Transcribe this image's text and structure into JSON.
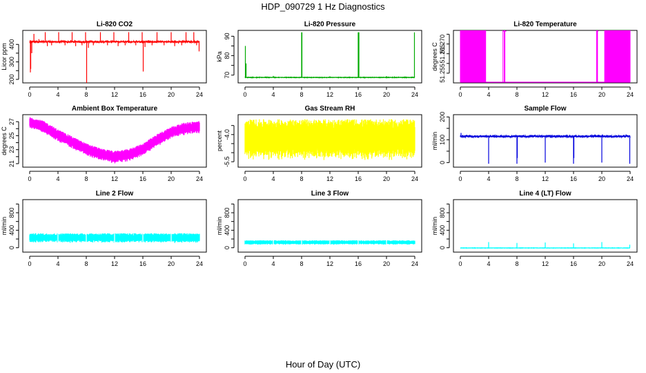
{
  "figure": {
    "title": "HDP_090729  1 Hz Diagnostics",
    "xlabel": "Hour of Day (UTC)"
  },
  "chart_data": [
    {
      "type": "line",
      "title": "Li-820 CO2",
      "ylabel": "Licor ppm",
      "color": "#ff0000",
      "style": "baseline-spiky",
      "xlim": [
        0,
        24
      ],
      "xticks": [
        "0",
        "4",
        "8",
        "12",
        "16",
        "20",
        "24"
      ],
      "ylim": [
        180,
        480
      ],
      "yticks": [
        200,
        250,
        300,
        350,
        400
      ],
      "yticklabels": [
        "200",
        "",
        "300",
        "",
        "400"
      ],
      "base": 415,
      "noise": 4,
      "spikes": [
        {
          "x": 0.1,
          "y": 240
        },
        {
          "x": 0.15,
          "y": 260
        },
        {
          "x": 0.3,
          "y": 350
        },
        {
          "x": 0.6,
          "y": 460
        },
        {
          "x": 1.3,
          "y": 430
        },
        {
          "x": 2.2,
          "y": 470
        },
        {
          "x": 2.5,
          "y": 390
        },
        {
          "x": 3.1,
          "y": 395
        },
        {
          "x": 4.1,
          "y": 470
        },
        {
          "x": 5.0,
          "y": 395
        },
        {
          "x": 6.0,
          "y": 470
        },
        {
          "x": 6.5,
          "y": 390
        },
        {
          "x": 7.4,
          "y": 395
        },
        {
          "x": 7.9,
          "y": 470
        },
        {
          "x": 8.05,
          "y": 180
        },
        {
          "x": 8.3,
          "y": 380
        },
        {
          "x": 9.0,
          "y": 395
        },
        {
          "x": 10.0,
          "y": 470
        },
        {
          "x": 11.0,
          "y": 395
        },
        {
          "x": 11.9,
          "y": 470
        },
        {
          "x": 12.5,
          "y": 390
        },
        {
          "x": 13.5,
          "y": 395
        },
        {
          "x": 14.0,
          "y": 470
        },
        {
          "x": 15.0,
          "y": 395
        },
        {
          "x": 15.9,
          "y": 470
        },
        {
          "x": 16.05,
          "y": 245
        },
        {
          "x": 16.3,
          "y": 385
        },
        {
          "x": 17.3,
          "y": 395
        },
        {
          "x": 18.0,
          "y": 470
        },
        {
          "x": 19.0,
          "y": 395
        },
        {
          "x": 20.0,
          "y": 470
        },
        {
          "x": 20.5,
          "y": 390
        },
        {
          "x": 21.5,
          "y": 395
        },
        {
          "x": 22.1,
          "y": 470
        },
        {
          "x": 23.2,
          "y": 470
        },
        {
          "x": 23.6,
          "y": 395
        },
        {
          "x": 23.95,
          "y": 360
        }
      ]
    },
    {
      "type": "line",
      "title": "Li-820 Pressure",
      "ylabel": "kPa",
      "color": "#00aa00",
      "style": "baseline-spiky",
      "xlim": [
        0,
        24
      ],
      "xticks": [
        "0",
        "4",
        "8",
        "12",
        "16",
        "20",
        "24"
      ],
      "ylim": [
        66,
        93
      ],
      "yticks": [
        70,
        75,
        80,
        85,
        90
      ],
      "yticklabels": [
        "70",
        "",
        "80",
        "",
        "90"
      ],
      "base": 68.8,
      "noise": 0.1,
      "spikes": [
        {
          "x": 0.05,
          "y": 85
        },
        {
          "x": 0.15,
          "y": 76
        },
        {
          "x": 4.0,
          "y": 69.6
        },
        {
          "x": 8.0,
          "y": 92
        },
        {
          "x": 8.05,
          "y": 92
        },
        {
          "x": 12.0,
          "y": 69.4
        },
        {
          "x": 16.0,
          "y": 92
        },
        {
          "x": 16.05,
          "y": 92
        },
        {
          "x": 16.1,
          "y": 92
        },
        {
          "x": 20.0,
          "y": 69.5
        },
        {
          "x": 23.95,
          "y": 92
        }
      ]
    },
    {
      "type": "line",
      "title": "Li-820 Temperature",
      "ylabel": "degrees C",
      "color": "#ff00ff",
      "style": "toggle",
      "xlim": [
        0,
        24
      ],
      "xticks": [
        "0",
        "4",
        "8",
        "12",
        "16",
        "20",
        "24"
      ],
      "ylim": [
        51.25,
        51.277
      ],
      "yticks": [
        51.255,
        51.26,
        51.265,
        51.27,
        51.275
      ],
      "yticklabels": [
        "51.255",
        "",
        "51.265",
        "51.270",
        ""
      ],
      "low": 51.25,
      "high": 51.277,
      "toggle_density": [
        {
          "from": 0.0,
          "to": 3.6,
          "density": 0.9
        },
        {
          "from": 6.0,
          "to": 6.5,
          "density": 0.25
        },
        {
          "from": 19.2,
          "to": 19.5,
          "density": 0.4
        },
        {
          "from": 20.4,
          "to": 24.0,
          "density": 0.85
        }
      ]
    },
    {
      "type": "line",
      "title": "Ambient Box Temperature",
      "ylabel": "degrees C",
      "color": "#ff00ff",
      "style": "band",
      "xlim": [
        0,
        24
      ],
      "xticks": [
        "0",
        "4",
        "8",
        "12",
        "16",
        "20",
        "24"
      ],
      "ylim": [
        20.5,
        28.0
      ],
      "yticks": [
        21,
        22,
        23,
        24,
        25,
        26,
        27
      ],
      "yticklabels": [
        "21",
        "",
        "23",
        "",
        "25",
        "",
        "27"
      ],
      "curve": [
        {
          "x": 0,
          "y": 26.8
        },
        {
          "x": 2,
          "y": 26.2
        },
        {
          "x": 4,
          "y": 25.0
        },
        {
          "x": 6,
          "y": 24.0
        },
        {
          "x": 8,
          "y": 23.0
        },
        {
          "x": 10,
          "y": 22.3
        },
        {
          "x": 12,
          "y": 21.9
        },
        {
          "x": 14,
          "y": 22.2
        },
        {
          "x": 16,
          "y": 23.0
        },
        {
          "x": 18,
          "y": 24.3
        },
        {
          "x": 20,
          "y": 25.4
        },
        {
          "x": 22,
          "y": 26.0
        },
        {
          "x": 24,
          "y": 26.2
        }
      ],
      "halfwidth": 0.9
    },
    {
      "type": "line",
      "title": "Gas Stream RH",
      "ylabel": "percent",
      "color": "#ffff00",
      "style": "band",
      "xlim": [
        0,
        24
      ],
      "xticks": [
        "0",
        "4",
        "8",
        "12",
        "16",
        "20",
        "24"
      ],
      "ylim": [
        -5.8,
        -2.9
      ],
      "yticks": [
        -5.5,
        -5.0,
        -4.5,
        -4.0,
        -3.5
      ],
      "yticklabels": [
        "-5.5",
        "",
        "",
        "-4.0",
        ""
      ],
      "curve": [
        {
          "x": 0,
          "y": -4.3
        },
        {
          "x": 24,
          "y": -4.3
        }
      ],
      "halfwidth": 1.15
    },
    {
      "type": "line",
      "title": "Sample Flow",
      "ylabel": "ml/min",
      "color": "#0000dd",
      "style": "baseline-spiky",
      "xlim": [
        0,
        24
      ],
      "xticks": [
        "0",
        "4",
        "8",
        "12",
        "16",
        "20",
        "24"
      ],
      "ylim": [
        -20,
        210
      ],
      "yticks": [
        0,
        50,
        100,
        150,
        200
      ],
      "yticklabels": [
        "0",
        "",
        "100",
        "",
        "200"
      ],
      "base": 115,
      "noise": 4,
      "spikes": [
        {
          "x": 0.1,
          "y": 130
        },
        {
          "x": 4.0,
          "y": -5
        },
        {
          "x": 8.0,
          "y": -5
        },
        {
          "x": 8.05,
          "y": 20
        },
        {
          "x": 12.0,
          "y": 0
        },
        {
          "x": 16.0,
          "y": -5
        },
        {
          "x": 16.05,
          "y": 20
        },
        {
          "x": 20.0,
          "y": 0
        },
        {
          "x": 23.95,
          "y": -5
        }
      ]
    },
    {
      "type": "line",
      "title": "Line 2 Flow",
      "ylabel": "ml/min",
      "color": "#00ffff",
      "style": "band",
      "xlim": [
        0,
        24
      ],
      "xticks": [
        "0",
        "4",
        "8",
        "12",
        "16",
        "20",
        "24"
      ],
      "ylim": [
        -100,
        1100
      ],
      "yticks": [
        0,
        200,
        400,
        600,
        800,
        1000
      ],
      "yticklabels": [
        "0",
        "",
        "400",
        "",
        "800",
        ""
      ],
      "curve": [
        {
          "x": 0,
          "y": 220
        },
        {
          "x": 24,
          "y": 220
        }
      ],
      "halfwidth": 110,
      "gaps": [
        4,
        8,
        12,
        16,
        20
      ]
    },
    {
      "type": "line",
      "title": "Line 3 Flow",
      "ylabel": "ml/min",
      "color": "#00ffff",
      "style": "band",
      "xlim": [
        0,
        24
      ],
      "xticks": [
        "0",
        "4",
        "8",
        "12",
        "16",
        "20",
        "24"
      ],
      "ylim": [
        -100,
        1100
      ],
      "yticks": [
        0,
        200,
        400,
        600,
        800,
        1000
      ],
      "yticklabels": [
        "0",
        "",
        "400",
        "",
        "800",
        ""
      ],
      "curve": [
        {
          "x": 0,
          "y": 120
        },
        {
          "x": 24,
          "y": 120
        }
      ],
      "halfwidth": 50,
      "gaps": [
        4,
        8,
        12,
        16,
        20
      ]
    },
    {
      "type": "line",
      "title": "Line 4 (LT) Flow",
      "ylabel": "ml/min",
      "color": "#00ffff",
      "style": "baseline-spiky",
      "xlim": [
        0,
        24
      ],
      "xticks": [
        "0",
        "4",
        "8",
        "12",
        "16",
        "20",
        "24"
      ],
      "ylim": [
        -100,
        1100
      ],
      "yticks": [
        0,
        200,
        400,
        600,
        800,
        1000
      ],
      "yticklabels": [
        "0",
        "",
        "400",
        "",
        "800",
        ""
      ],
      "base": -5,
      "noise": 3,
      "spikes": [
        {
          "x": 4.0,
          "y": 130
        },
        {
          "x": 8.0,
          "y": 110
        },
        {
          "x": 12.0,
          "y": 120
        },
        {
          "x": 16.0,
          "y": 100
        },
        {
          "x": 20.0,
          "y": 130
        },
        {
          "x": 23.95,
          "y": 70
        }
      ]
    }
  ]
}
